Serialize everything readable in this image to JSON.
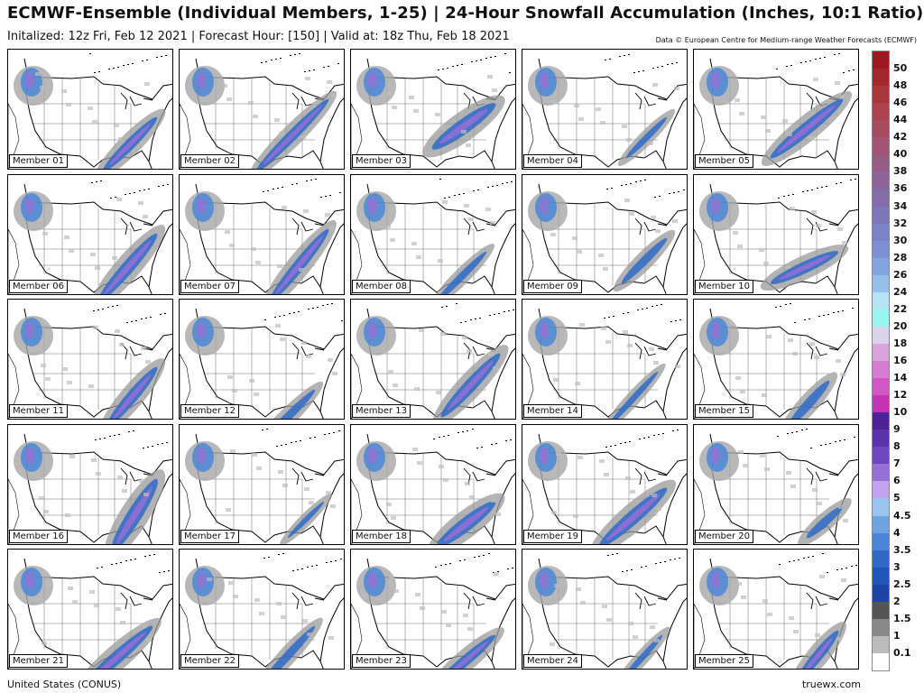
{
  "header": {
    "title": "ECMWF-Ensemble (Individual Members, 1-25) | 24-Hour Snowfall Accumulation (Inches, 10:1 Ratio)",
    "subtitle": "Initalized: 12z Fri, Feb 12 2021 | Forecast Hour: [150] | Valid at: 18z Thu, Feb 18 2021",
    "credit": "Data © European Centre for Medium-range Weather Forecasts (ECMWF)"
  },
  "members": [
    "Member 01",
    "Member 02",
    "Member 03",
    "Member 04",
    "Member 05",
    "Member 06",
    "Member 07",
    "Member 08",
    "Member 09",
    "Member 10",
    "Member 11",
    "Member 12",
    "Member 13",
    "Member 14",
    "Member 15",
    "Member 16",
    "Member 17",
    "Member 18",
    "Member 19",
    "Member 20",
    "Member 21",
    "Member 22",
    "Member 23",
    "Member 24",
    "Member 25"
  ],
  "legend": {
    "labels": [
      "50",
      "48",
      "46",
      "44",
      "42",
      "40",
      "38",
      "36",
      "34",
      "32",
      "30",
      "28",
      "26",
      "24",
      "22",
      "20",
      "18",
      "16",
      "14",
      "12",
      "10",
      "9",
      "8",
      "7",
      "6",
      "5",
      "4.5",
      "4",
      "3.5",
      "3",
      "2.5",
      "2",
      "1.5",
      "1",
      "0.1"
    ],
    "colors": [
      "#9c1a1f",
      "#a2282c",
      "#a8363d",
      "#ad4350",
      "#a84b61",
      "#a25274",
      "#985b86",
      "#8e6398",
      "#846ca8",
      "#7d76b8",
      "#7a82c8",
      "#7d90d4",
      "#86a4e0",
      "#96c0ea",
      "#b4e4f3",
      "#9af5f0",
      "#d9d3ec",
      "#d9a4dc",
      "#d77cd2",
      "#cf57c6",
      "#c233b6",
      "#4c2396",
      "#5b32ad",
      "#6f46c2",
      "#9670d6",
      "#c1a2ec",
      "#9bc4f0",
      "#6fa4e3",
      "#4b86d6",
      "#2f6ac8",
      "#1f54b8",
      "#1a44a6",
      "#555555",
      "#888888",
      "#bbbbbb",
      "#ffffff"
    ]
  },
  "footer": {
    "region": "United States (CONUS)",
    "brand": "truewx.com"
  }
}
